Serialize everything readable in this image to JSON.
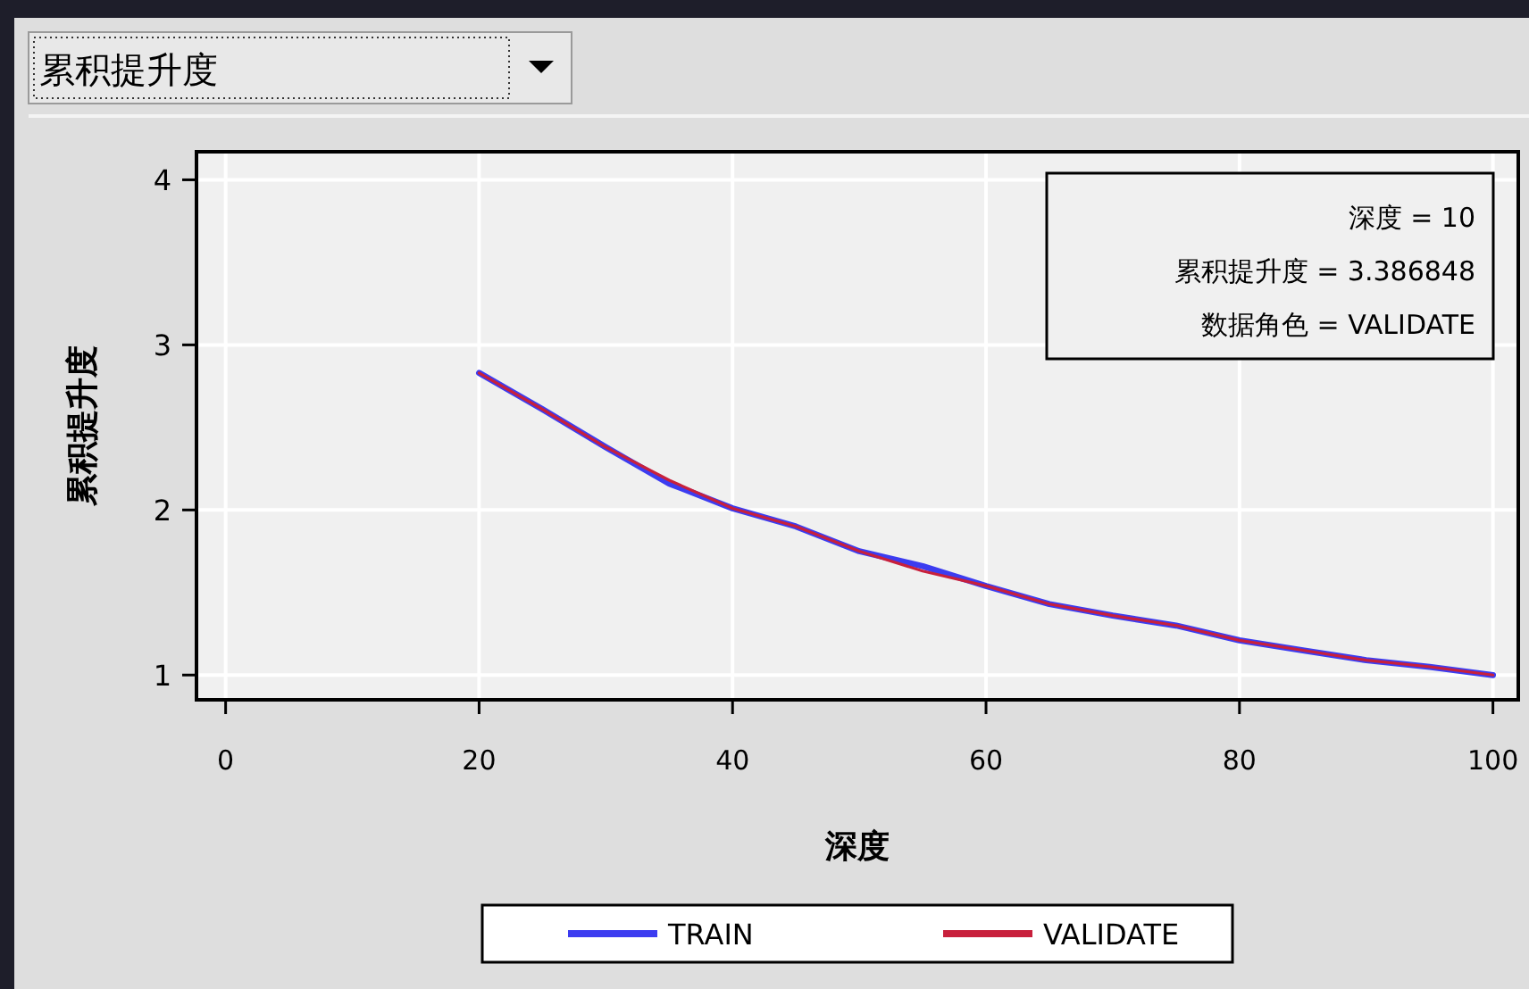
{
  "chart_data": {
    "type": "line",
    "title": "累积提升度",
    "xlabel": "深度",
    "ylabel": "累积提升度",
    "x": [
      20,
      25,
      30,
      35,
      40,
      45,
      50,
      55,
      60,
      65,
      70,
      75,
      80,
      85,
      90,
      95,
      100
    ],
    "series": [
      {
        "name": "TRAIN",
        "color": "#3c3cf0",
        "values": [
          2.83,
          2.61,
          2.38,
          2.16,
          2.01,
          1.9,
          1.75,
          1.66,
          1.54,
          1.43,
          1.36,
          1.3,
          1.21,
          1.15,
          1.09,
          1.05,
          1.0
        ]
      },
      {
        "name": "VALIDATE",
        "color": "#c8203c",
        "values": [
          2.83,
          2.61,
          2.38,
          2.18,
          2.01,
          1.9,
          1.75,
          1.63,
          1.54,
          1.43,
          1.36,
          1.3,
          1.21,
          1.15,
          1.09,
          1.05,
          1.0
        ]
      }
    ],
    "xlim": [
      -2.3,
      102
    ],
    "ylim": [
      0.85,
      4.17
    ],
    "xticks": [
      0,
      20,
      40,
      60,
      80,
      100
    ],
    "yticks": [
      1,
      2,
      3,
      4
    ],
    "grid": true,
    "legend": "bottom",
    "marker": "none",
    "line_style": "solid",
    "annotations": [
      "深度 = 10",
      "累积提升度 = 3.386848",
      "数据角色 = VALIDATE"
    ]
  }
}
